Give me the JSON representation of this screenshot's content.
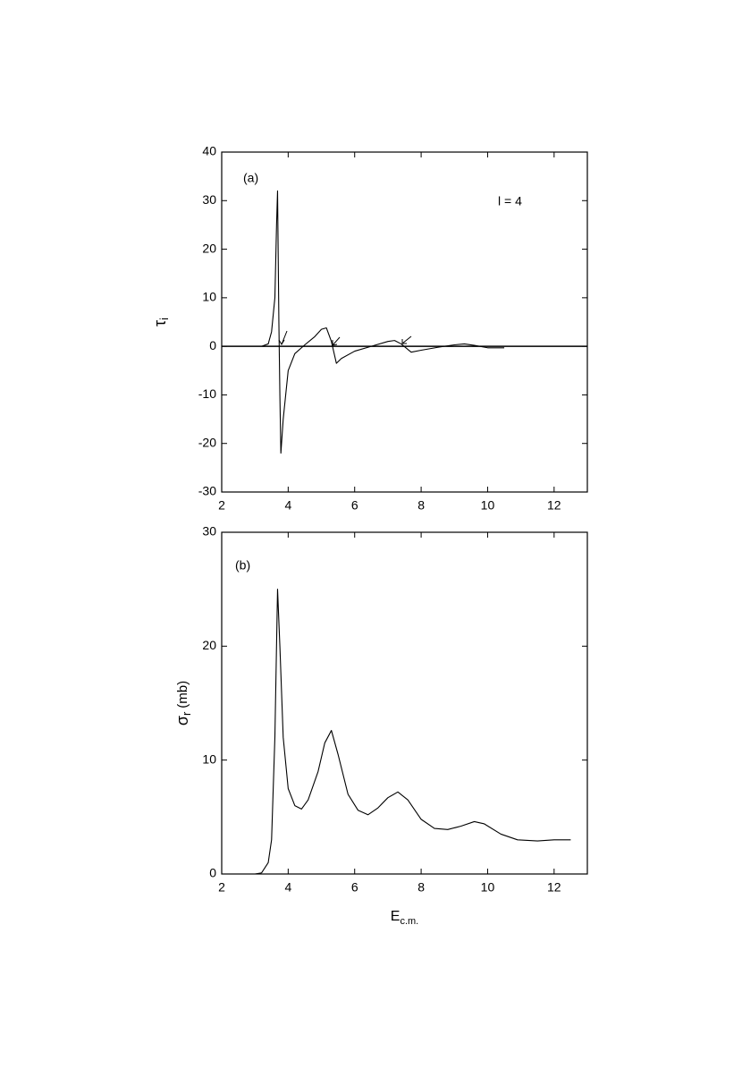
{
  "chart_data": [
    {
      "type": "line",
      "annotations": [
        "(a)",
        "l = 4"
      ],
      "ylabel": {
        "text": "τ",
        "subscript": "i"
      },
      "xlim": [
        2,
        13
      ],
      "xticks": [
        2,
        4,
        6,
        8,
        10,
        12
      ],
      "ylim": [
        -30,
        40
      ],
      "yticks": [
        -30,
        -20,
        -10,
        0,
        10,
        20,
        30,
        40
      ],
      "series": [
        {
          "color": "#000000",
          "x": [
            3.2,
            3.4,
            3.5,
            3.6,
            3.65,
            3.68,
            3.72,
            3.75,
            3.78,
            3.85,
            4.0,
            4.2,
            4.5,
            4.8,
            5.0,
            5.15,
            5.3,
            5.45,
            5.6,
            6.0,
            6.5,
            7.0,
            7.2,
            7.4,
            7.7,
            8.0,
            8.5,
            9.0,
            9.3,
            9.6,
            10.0,
            10.5
          ],
          "values": [
            0,
            0.5,
            3,
            10,
            25,
            32,
            5,
            -10,
            -22,
            -15,
            -5,
            -1.5,
            0.3,
            2,
            3.5,
            3.8,
            1,
            -3.5,
            -2.5,
            -1,
            0,
            1,
            1.2,
            0.5,
            -1.2,
            -0.8,
            -0.2,
            0.3,
            0.5,
            0.2,
            -0.3,
            -0.3
          ]
        }
      ]
    },
    {
      "type": "line",
      "annotations": [
        "(b)"
      ],
      "ylabel": {
        "text": "σ",
        "subscript": "r",
        "unit": "(mb)"
      },
      "xlabel": {
        "text": "E",
        "subscript": "c.m."
      },
      "xlim": [
        2,
        13
      ],
      "xticks": [
        2,
        4,
        6,
        8,
        10,
        12
      ],
      "ylim": [
        0,
        30
      ],
      "yticks": [
        0,
        10,
        20,
        30
      ],
      "series": [
        {
          "color": "#000000",
          "x": [
            3.0,
            3.2,
            3.4,
            3.5,
            3.6,
            3.68,
            3.75,
            3.85,
            4.0,
            4.2,
            4.4,
            4.6,
            4.9,
            5.1,
            5.3,
            5.5,
            5.8,
            6.1,
            6.4,
            6.7,
            7.0,
            7.3,
            7.6,
            8.0,
            8.4,
            8.8,
            9.2,
            9.6,
            9.9,
            10.4,
            10.9,
            11.5,
            12.0,
            12.5
          ],
          "values": [
            0,
            0.1,
            1,
            3,
            12,
            25,
            20,
            12,
            7.5,
            6,
            5.7,
            6.5,
            9,
            11.5,
            12.6,
            10.5,
            7,
            5.6,
            5.2,
            5.8,
            6.7,
            7.2,
            6.5,
            4.8,
            4.0,
            3.9,
            4.2,
            4.6,
            4.4,
            3.5,
            3.0,
            2.9,
            3.0,
            3.0
          ]
        }
      ]
    }
  ]
}
